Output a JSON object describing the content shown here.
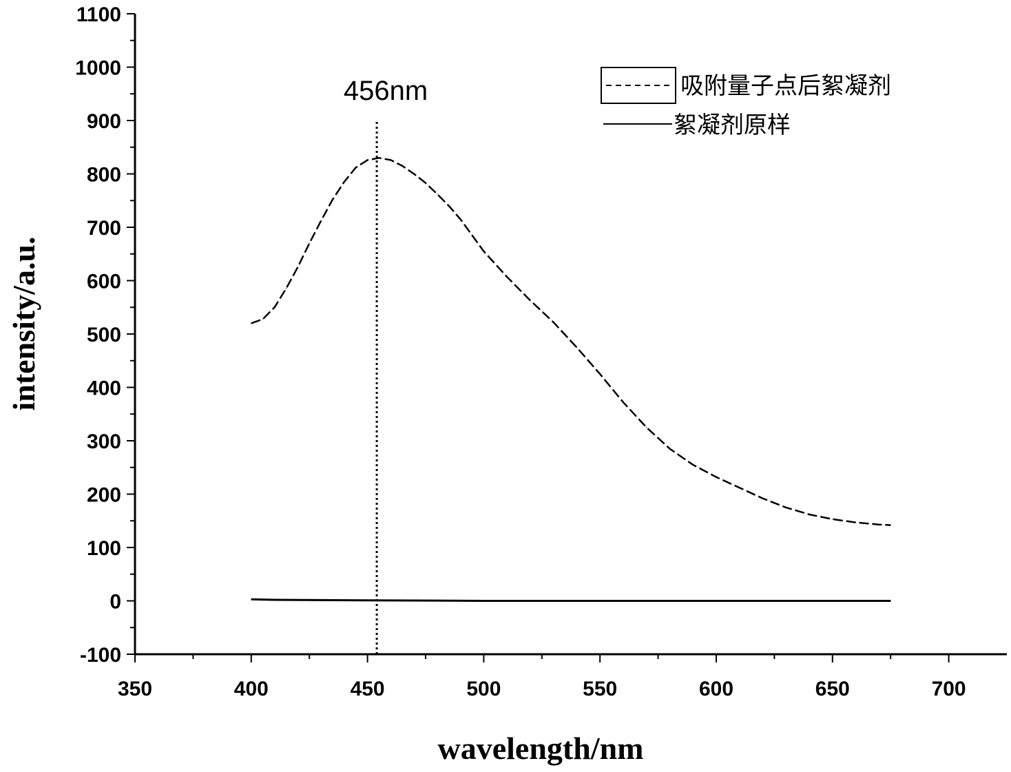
{
  "chart_data": {
    "type": "line",
    "xlabel": "wavelength/nm",
    "ylabel": "intensity/a.u.",
    "xlim": [
      350,
      725
    ],
    "ylim": [
      -100,
      1100
    ],
    "xticks": [
      350,
      400,
      450,
      500,
      550,
      600,
      650,
      700
    ],
    "yticks": [
      -100,
      0,
      100,
      200,
      300,
      400,
      500,
      600,
      700,
      800,
      900,
      1000,
      1100
    ],
    "grid": false,
    "legend_position": "top-right",
    "annotation": {
      "text": "456nm",
      "x": 454,
      "y_range": [
        -100,
        900
      ]
    },
    "series": [
      {
        "name": "吸附量子点后絮凝剂",
        "style": "dashed",
        "x": [
          400,
          405,
          410,
          415,
          420,
          425,
          430,
          435,
          440,
          445,
          450,
          455,
          460,
          465,
          470,
          475,
          480,
          485,
          490,
          495,
          500,
          510,
          520,
          530,
          540,
          550,
          560,
          570,
          580,
          590,
          600,
          610,
          620,
          630,
          640,
          650,
          660,
          670,
          675
        ],
        "values": [
          520,
          528,
          550,
          585,
          625,
          670,
          712,
          752,
          785,
          812,
          826,
          830,
          826,
          815,
          800,
          783,
          762,
          740,
          715,
          685,
          655,
          607,
          563,
          522,
          475,
          425,
          372,
          325,
          285,
          255,
          232,
          212,
          192,
          175,
          162,
          153,
          147,
          143,
          142
        ]
      },
      {
        "name": "絮凝剂原样",
        "style": "solid",
        "x": [
          400,
          410,
          450,
          500,
          550,
          600,
          650,
          675
        ],
        "values": [
          3,
          2,
          1,
          0,
          0,
          0,
          0,
          0
        ]
      }
    ]
  },
  "colors": {
    "line": "#000000",
    "background": "#ffffff"
  }
}
